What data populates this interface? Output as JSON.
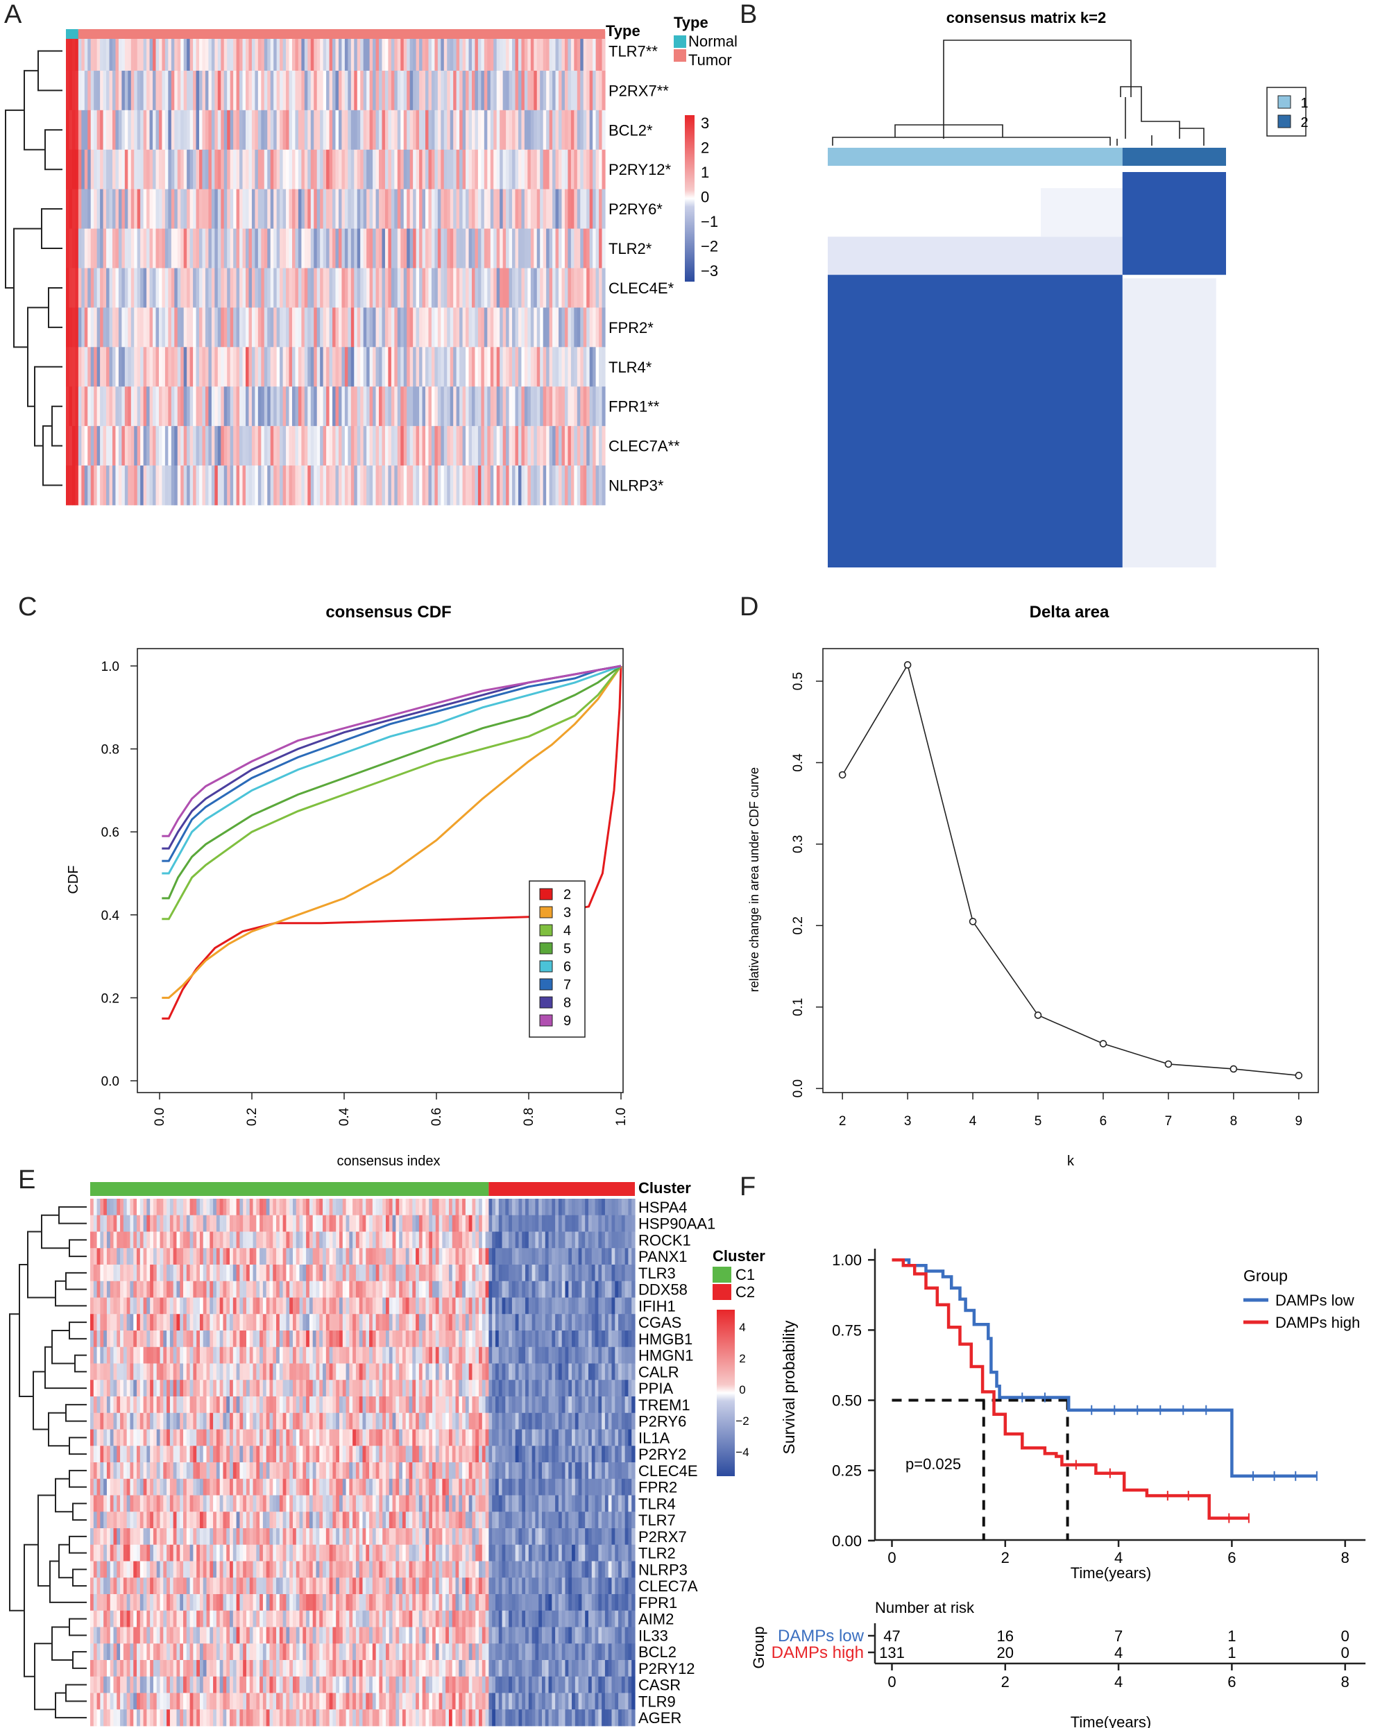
{
  "panel_letters": [
    "A",
    "B",
    "C",
    "D",
    "E",
    "F"
  ],
  "colors": {
    "hm_low": "#2b4a9e",
    "hm_mid": "#ffffff",
    "hm_high": "#e8262a",
    "normal": "#38b9c6",
    "tumor": "#ef7f7b",
    "c1": "#5bb747",
    "c2": "#e8262a",
    "cons_light": "#8fc4e0",
    "cons_dark": "#2f6ca8",
    "cons_fill": "#2b57ad",
    "cdf_k2": "#e41a1c",
    "cdf_k3": "#f0a12a",
    "cdf_k4": "#7fbf3f",
    "cdf_k5": "#5aa83a",
    "cdf_k6": "#4bc3d8",
    "cdf_k7": "#2a6ab8",
    "cdf_k8": "#4b3f9e",
    "cdf_k9": "#b04fb0",
    "km_low": "#3b6fc0",
    "km_high": "#e8262a"
  },
  "chart_data": [
    {
      "id": "A",
      "type": "heatmap",
      "annotation_title": "Type",
      "legend_title": "Type",
      "groups": [
        {
          "name": "Normal",
          "n": 4
        },
        {
          "name": "Tumor",
          "n": 170
        }
      ],
      "rows": [
        "TLR7**",
        "P2RX7**",
        "BCL2*",
        "P2RY12*",
        "P2RY6*",
        "TLR2*",
        "CLEC4E*",
        "FPR2*",
        "TLR4*",
        "FPR1**",
        "CLEC7A**",
        "NLRP3*"
      ],
      "scale_ticks": [
        "3",
        "2",
        "1",
        "0",
        "−1",
        "−2",
        "−3"
      ],
      "scale_range": [
        -3,
        3
      ]
    },
    {
      "id": "B",
      "type": "heatmap",
      "title": "consensus matrix k=2",
      "legend": [
        "1",
        "2"
      ],
      "cluster_fraction": [
        0.74,
        0.26
      ]
    },
    {
      "id": "C",
      "type": "line",
      "title": "consensus CDF",
      "xlabel": "consensus index",
      "ylabel": "CDF",
      "xlim": [
        0,
        1
      ],
      "ylim": [
        0,
        1
      ],
      "x_ticks": [
        "0.0",
        "0.2",
        "0.4",
        "0.6",
        "0.8",
        "1.0"
      ],
      "y_ticks": [
        "0.0",
        "0.2",
        "0.4",
        "0.6",
        "0.8",
        "1.0"
      ],
      "series": [
        {
          "name": "2",
          "x": [
            0.005,
            0.02,
            0.05,
            0.08,
            0.12,
            0.18,
            0.25,
            0.35,
            0.5,
            0.65,
            0.8,
            0.88,
            0.93,
            0.96,
            0.975,
            0.985,
            0.99,
            0.997,
            1.0
          ],
          "y": [
            0.15,
            0.15,
            0.22,
            0.27,
            0.32,
            0.36,
            0.38,
            0.38,
            0.385,
            0.39,
            0.395,
            0.41,
            0.42,
            0.5,
            0.62,
            0.7,
            0.78,
            0.9,
            1.0
          ]
        },
        {
          "name": "3",
          "x": [
            0.005,
            0.02,
            0.05,
            0.1,
            0.15,
            0.2,
            0.3,
            0.4,
            0.5,
            0.6,
            0.7,
            0.8,
            0.85,
            0.9,
            0.95,
            1.0
          ],
          "y": [
            0.2,
            0.2,
            0.23,
            0.29,
            0.33,
            0.36,
            0.4,
            0.44,
            0.5,
            0.58,
            0.68,
            0.77,
            0.81,
            0.86,
            0.92,
            1.0
          ]
        },
        {
          "name": "4",
          "x": [
            0.005,
            0.02,
            0.04,
            0.07,
            0.1,
            0.2,
            0.3,
            0.4,
            0.5,
            0.6,
            0.7,
            0.8,
            0.9,
            0.95,
            1.0
          ],
          "y": [
            0.39,
            0.39,
            0.43,
            0.49,
            0.52,
            0.6,
            0.65,
            0.69,
            0.73,
            0.77,
            0.8,
            0.83,
            0.88,
            0.93,
            1.0
          ]
        },
        {
          "name": "5",
          "x": [
            0.005,
            0.02,
            0.04,
            0.07,
            0.1,
            0.2,
            0.3,
            0.4,
            0.5,
            0.6,
            0.7,
            0.8,
            0.9,
            0.95,
            1.0
          ],
          "y": [
            0.44,
            0.44,
            0.49,
            0.54,
            0.57,
            0.64,
            0.69,
            0.73,
            0.77,
            0.81,
            0.85,
            0.88,
            0.93,
            0.96,
            1.0
          ]
        },
        {
          "name": "6",
          "x": [
            0.005,
            0.02,
            0.04,
            0.07,
            0.1,
            0.2,
            0.3,
            0.4,
            0.5,
            0.6,
            0.7,
            0.8,
            0.9,
            0.95,
            1.0
          ],
          "y": [
            0.5,
            0.5,
            0.54,
            0.6,
            0.63,
            0.7,
            0.75,
            0.79,
            0.83,
            0.86,
            0.9,
            0.93,
            0.96,
            0.98,
            1.0
          ]
        },
        {
          "name": "7",
          "x": [
            0.005,
            0.02,
            0.04,
            0.07,
            0.1,
            0.2,
            0.3,
            0.4,
            0.5,
            0.6,
            0.7,
            0.8,
            0.9,
            0.95,
            1.0
          ],
          "y": [
            0.53,
            0.53,
            0.57,
            0.63,
            0.66,
            0.73,
            0.78,
            0.82,
            0.86,
            0.89,
            0.92,
            0.95,
            0.97,
            0.99,
            1.0
          ]
        },
        {
          "name": "8",
          "x": [
            0.005,
            0.02,
            0.04,
            0.07,
            0.1,
            0.2,
            0.3,
            0.4,
            0.5,
            0.6,
            0.7,
            0.8,
            0.9,
            0.95,
            1.0
          ],
          "y": [
            0.56,
            0.56,
            0.6,
            0.65,
            0.68,
            0.75,
            0.8,
            0.84,
            0.87,
            0.9,
            0.93,
            0.96,
            0.98,
            0.99,
            1.0
          ]
        },
        {
          "name": "9",
          "x": [
            0.005,
            0.02,
            0.04,
            0.07,
            0.1,
            0.2,
            0.3,
            0.4,
            0.5,
            0.6,
            0.7,
            0.8,
            0.9,
            0.95,
            1.0
          ],
          "y": [
            0.59,
            0.59,
            0.63,
            0.68,
            0.71,
            0.77,
            0.82,
            0.85,
            0.88,
            0.91,
            0.94,
            0.96,
            0.98,
            0.99,
            1.0
          ]
        }
      ]
    },
    {
      "id": "D",
      "type": "line",
      "title": "Delta area",
      "xlabel": "k",
      "ylabel": "relative change in area under CDF curve",
      "x": [
        2,
        3,
        4,
        5,
        6,
        7,
        8,
        9
      ],
      "y": [
        0.385,
        0.52,
        0.205,
        0.09,
        0.055,
        0.03,
        0.024,
        0.016
      ],
      "xlim": [
        1.7,
        9.3
      ],
      "ylim": [
        -0.005,
        0.54
      ],
      "x_ticks": [
        "2",
        "3",
        "4",
        "5",
        "6",
        "7",
        "8",
        "9"
      ],
      "y_ticks": [
        "0.0",
        "0.1",
        "0.2",
        "0.3",
        "0.4",
        "0.5"
      ]
    },
    {
      "id": "E",
      "type": "heatmap",
      "annotation_title": "Cluster",
      "legend_title": "Cluster",
      "groups": [
        {
          "name": "C1",
          "n": 120
        },
        {
          "name": "C2",
          "n": 44
        }
      ],
      "rows": [
        "HSPA4",
        "HSP90AA1",
        "ROCK1",
        "PANX1",
        "TLR3",
        "DDX58",
        "IFIH1",
        "CGAS",
        "HMGB1",
        "HMGN1",
        "CALR",
        "PPIA",
        "TREM1",
        "P2RY6",
        "IL1A",
        "P2RY2",
        "CLEC4E",
        "FPR2",
        "TLR4",
        "TLR7",
        "P2RX7",
        "TLR2",
        "NLRP3",
        "CLEC7A",
        "FPR1",
        "AIM2",
        "IL33",
        "BCL2",
        "P2RY12",
        "CASR",
        "TLR9",
        "AGER"
      ],
      "scale_ticks": [
        "4",
        "2",
        "0",
        "−2",
        "−4"
      ],
      "scale_range": [
        -5,
        5
      ]
    },
    {
      "id": "F",
      "type": "line",
      "subtype": "kaplan-meier",
      "xlabel": "Time(years)",
      "ylabel": "Survival probability",
      "xlim": [
        -0.3,
        8.2
      ],
      "ylim": [
        -0.03,
        1.04
      ],
      "x_ticks": [
        "0",
        "2",
        "4",
        "6",
        "8"
      ],
      "y_ticks": [
        "0.00",
        "0.25",
        "0.50",
        "0.75",
        "1.00"
      ],
      "legend_title": "Group",
      "pvalue": "p=0.025",
      "median_lines": [
        1.62,
        3.1
      ],
      "series": [
        {
          "name": "DAMPs low",
          "steps": [
            [
              0,
              1.0
            ],
            [
              0.3,
              0.98
            ],
            [
              0.6,
              0.96
            ],
            [
              0.9,
              0.94
            ],
            [
              1.05,
              0.9
            ],
            [
              1.2,
              0.86
            ],
            [
              1.3,
              0.82
            ],
            [
              1.45,
              0.77
            ],
            [
              1.7,
              0.72
            ],
            [
              1.75,
              0.6
            ],
            [
              1.85,
              0.55
            ],
            [
              1.9,
              0.51
            ],
            [
              3.1,
              0.51
            ],
            [
              3.12,
              0.465
            ],
            [
              5.95,
              0.465
            ],
            [
              6.0,
              0.23
            ],
            [
              7.5,
              0.23
            ]
          ]
        },
        {
          "name": "DAMPs high",
          "steps": [
            [
              0,
              1.0
            ],
            [
              0.2,
              0.98
            ],
            [
              0.4,
              0.95
            ],
            [
              0.6,
              0.9
            ],
            [
              0.8,
              0.84
            ],
            [
              1.0,
              0.76
            ],
            [
              1.2,
              0.7
            ],
            [
              1.4,
              0.62
            ],
            [
              1.6,
              0.53
            ],
            [
              1.8,
              0.45
            ],
            [
              2.0,
              0.38
            ],
            [
              2.3,
              0.33
            ],
            [
              2.7,
              0.31
            ],
            [
              2.9,
              0.3
            ],
            [
              3.0,
              0.27
            ],
            [
              3.5,
              0.27
            ],
            [
              3.6,
              0.24
            ],
            [
              4.1,
              0.18
            ],
            [
              4.5,
              0.16
            ],
            [
              5.6,
              0.08
            ],
            [
              6.3,
              0.08
            ]
          ]
        }
      ],
      "risk_table": {
        "title": "Number at risk",
        "ylabel": "Group",
        "times": [
          "0",
          "2",
          "4",
          "6",
          "8"
        ],
        "rows": [
          {
            "label": "DAMPs  low",
            "counts": [
              "47",
              "16",
              "7",
              "1",
              "0"
            ]
          },
          {
            "label": "DAMPs  high",
            "counts": [
              "131",
              "20",
              "4",
              "1",
              "0"
            ]
          }
        ]
      }
    }
  ]
}
